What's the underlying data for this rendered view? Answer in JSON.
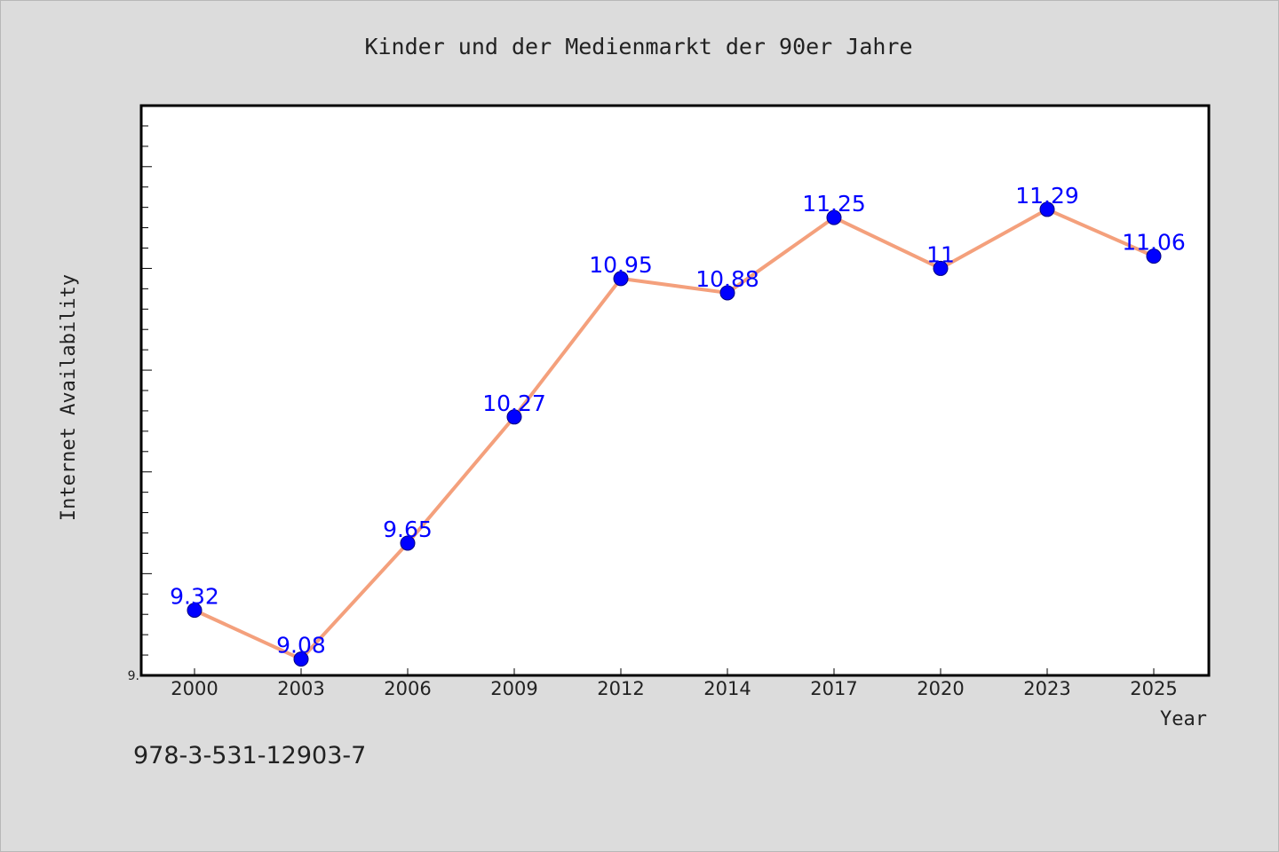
{
  "footer_text": "978-3-531-12903-7",
  "chart_data": {
    "type": "line",
    "title": "Kinder und der Medienmarkt der 90er Jahre",
    "xlabel": "Year",
    "ylabel": "Internet Availability",
    "categories": [
      "2000",
      "2003",
      "2006",
      "2009",
      "2012",
      "2014",
      "2017",
      "2020",
      "2023",
      "2025"
    ],
    "values": [
      9.32,
      9.08,
      9.65,
      10.27,
      10.95,
      10.88,
      11.25,
      11,
      11.29,
      11.06
    ],
    "data_labels": [
      "9.32",
      "9.08",
      "9.65",
      "10.27",
      "10.95",
      "10.88",
      "11.25",
      "11",
      "11.29",
      "11.06"
    ],
    "ylim": [
      9.0,
      11.8
    ],
    "y_tick_labels": [
      "9."
    ],
    "grid": false,
    "legend": "none",
    "colors": {
      "line": "#f4a07c",
      "marker_fill": "#0000ff",
      "marker_edge": "#000080",
      "data_label": "#0000ff",
      "plot_background": "#ffffff",
      "figure_background": "#dcdcdc"
    }
  }
}
